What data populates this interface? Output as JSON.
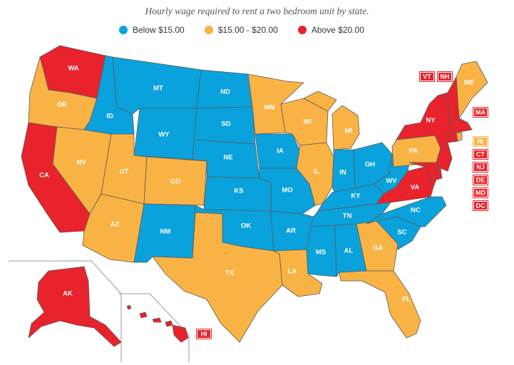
{
  "title": "Hourly wage required to rent a two bedroom unit by state.",
  "legend": [
    {
      "key": "low",
      "label": "Below $15.00",
      "color": "#0aa2dc"
    },
    {
      "key": "mid",
      "label": "$15.00 - $20.00",
      "color": "#f9b345"
    },
    {
      "key": "high",
      "label": "Above $20.00",
      "color": "#e8232b"
    }
  ],
  "states": {
    "WA": "high",
    "OR": "mid",
    "CA": "high",
    "NV": "mid",
    "ID": "low",
    "MT": "low",
    "WY": "low",
    "UT": "mid",
    "AZ": "mid",
    "CO": "mid",
    "NM": "low",
    "ND": "low",
    "SD": "low",
    "NE": "low",
    "KS": "low",
    "OK": "low",
    "TX": "mid",
    "MN": "mid",
    "IA": "low",
    "MO": "low",
    "AR": "low",
    "LA": "mid",
    "WI": "mid",
    "IL": "mid",
    "MI": "mid",
    "IN": "low",
    "OH": "low",
    "KY": "low",
    "TN": "low",
    "MS": "low",
    "AL": "low",
    "GA": "mid",
    "FL": "mid",
    "SC": "low",
    "NC": "low",
    "VA": "high",
    "WV": "low",
    "PA": "mid",
    "NY": "high",
    "ME": "mid",
    "VT": "high",
    "NH": "high",
    "MA": "high",
    "RI": "mid",
    "CT": "high",
    "NJ": "high",
    "DE": "high",
    "MD": "high",
    "DC": "high",
    "AK": "high",
    "HI": "high"
  },
  "callouts": [
    "VT",
    "NH",
    "MA",
    "RI",
    "CT",
    "NJ",
    "DE",
    "MD",
    "DC",
    "HI"
  ]
}
